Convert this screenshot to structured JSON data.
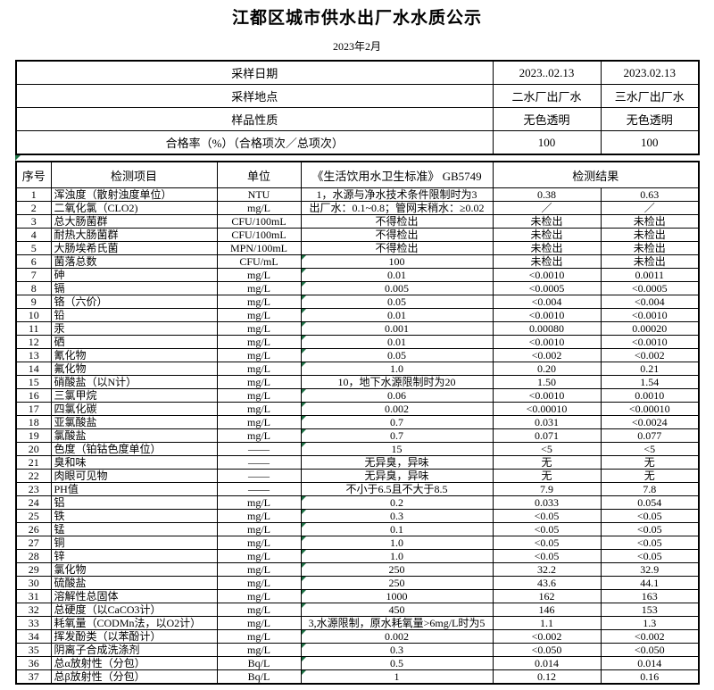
{
  "title": "江都区城市供水出厂水水质公示",
  "subtitle": "2023年2月",
  "info": {
    "rows": [
      {
        "label": "采样日期",
        "v1": "2023..02.13",
        "v2": "2023.02.13"
      },
      {
        "label": "采样地点",
        "v1": "二水厂出厂水",
        "v2": "三水厂出厂水"
      },
      {
        "label": "样品性质",
        "v1": "无色透明",
        "v2": "无色透明"
      },
      {
        "label": "合格率（%）（合格项次／总项次）",
        "v1": "100",
        "v2": "100"
      }
    ]
  },
  "columns": {
    "seq": "序号",
    "item": "检测项目",
    "unit": "单位",
    "standard": "《生活饮用水卫生标准》 GB5749",
    "result": "检测结果"
  },
  "rows": [
    {
      "no": "1",
      "item": "浑浊度（散射浊度单位）",
      "unit": "NTU",
      "std": "1，水源与净水技术条件限制时为3",
      "r1": "0.38",
      "r2": "0.63",
      "flag": false
    },
    {
      "no": "2",
      "item": "二氧化氯（CLO2)",
      "unit": "mg/L",
      "std": "出厂水：0.1~0.8；管网末稍水：≥0.02",
      "r1": "／",
      "r2": "／",
      "flag": false
    },
    {
      "no": "3",
      "item": "总大肠菌群",
      "unit": "CFU/100mL",
      "std": "不得检出",
      "r1": "未检出",
      "r2": "未检出",
      "flag": false
    },
    {
      "no": "4",
      "item": "耐热大肠菌群",
      "unit": "CFU/100mL",
      "std": "不得检出",
      "r1": "未检出",
      "r2": "未检出",
      "flag": false
    },
    {
      "no": "5",
      "item": "大肠埃希氏菌",
      "unit": "MPN/100mL",
      "std": "不得检出",
      "r1": "未检出",
      "r2": "未检出",
      "flag": false
    },
    {
      "no": "6",
      "item": "菌落总数",
      "unit": "CFU/mL",
      "std": "100",
      "r1": "未检出",
      "r2": "未检出",
      "flag": true
    },
    {
      "no": "7",
      "item": "砷",
      "unit": "mg/L",
      "std": "0.01",
      "r1": "<0.0010",
      "r2": "0.0011",
      "flag": true
    },
    {
      "no": "8",
      "item": "镉",
      "unit": "mg/L",
      "std": "0.005",
      "r1": "<0.0005",
      "r2": "<0.0005",
      "flag": true
    },
    {
      "no": "9",
      "item": "铬（六价）",
      "unit": "mg/L",
      "std": "0.05",
      "r1": "<0.004",
      "r2": "<0.004",
      "flag": true
    },
    {
      "no": "10",
      "item": "铅",
      "unit": "mg/L",
      "std": "0.01",
      "r1": "<0.0010",
      "r2": "<0.0010",
      "flag": true
    },
    {
      "no": "11",
      "item": "汞",
      "unit": "mg/L",
      "std": "0.001",
      "r1": "0.00080",
      "r2": "0.00020",
      "flag": true
    },
    {
      "no": "12",
      "item": "硒",
      "unit": "mg/L",
      "std": "0.01",
      "r1": "<0.0010",
      "r2": "<0.0010",
      "flag": true
    },
    {
      "no": "13",
      "item": "氰化物",
      "unit": "mg/L",
      "std": "0.05",
      "r1": "<0.002",
      "r2": "<0.002",
      "flag": true
    },
    {
      "no": "14",
      "item": "氟化物",
      "unit": "mg/L",
      "std": "1.0",
      "r1": "0.20",
      "r2": "0.21",
      "flag": true
    },
    {
      "no": "15",
      "item": "硝酸盐（以N计）",
      "unit": "mg/L",
      "std": "10，地下水源限制时为20",
      "r1": "1.50",
      "r2": "1.54",
      "flag": false
    },
    {
      "no": "16",
      "item": "三氯甲烷",
      "unit": "mg/L",
      "std": "0.06",
      "r1": "<0.0010",
      "r2": "0.0010",
      "flag": true
    },
    {
      "no": "17",
      "item": "四氯化碳",
      "unit": "mg/L",
      "std": "0.002",
      "r1": "<0.00010",
      "r2": "<0.00010",
      "flag": true
    },
    {
      "no": "18",
      "item": "亚氯酸盐",
      "unit": "mg/L",
      "std": "0.7",
      "r1": "0.031",
      "r2": "<0.0024",
      "flag": true
    },
    {
      "no": "19",
      "item": "氯酸盐",
      "unit": "mg/L",
      "std": "0.7",
      "r1": "0.071",
      "r2": "0.077",
      "flag": true
    },
    {
      "no": "20",
      "item": "色度（铂钴色度单位）",
      "unit": "——",
      "std": "15",
      "r1": "<5",
      "r2": "<5",
      "flag": true
    },
    {
      "no": "21",
      "item": "臭和味",
      "unit": "——",
      "std": "无异臭，异味",
      "r1": "无",
      "r2": "无",
      "flag": false
    },
    {
      "no": "22",
      "item": "肉眼可见物",
      "unit": "——",
      "std": "无异臭，异味",
      "r1": "无",
      "r2": "无",
      "flag": false
    },
    {
      "no": "23",
      "item": "PH值",
      "unit": "——",
      "std": "不小于6.5且不大于8.5",
      "r1": "7.9",
      "r2": "7.8",
      "flag": false
    },
    {
      "no": "24",
      "item": "铝",
      "unit": "mg/L",
      "std": "0.2",
      "r1": "0.033",
      "r2": "0.054",
      "flag": true
    },
    {
      "no": "25",
      "item": "铁",
      "unit": "mg/L",
      "std": "0.3",
      "r1": "<0.05",
      "r2": "<0.05",
      "flag": true
    },
    {
      "no": "26",
      "item": "锰",
      "unit": "mg/L",
      "std": "0.1",
      "r1": "<0.05",
      "r2": "<0.05",
      "flag": true
    },
    {
      "no": "27",
      "item": "铜",
      "unit": "mg/L",
      "std": "1.0",
      "r1": "<0.05",
      "r2": "<0.05",
      "flag": true
    },
    {
      "no": "28",
      "item": "锌",
      "unit": "mg/L",
      "std": "1.0",
      "r1": "<0.05",
      "r2": "<0.05",
      "flag": true
    },
    {
      "no": "29",
      "item": "氯化物",
      "unit": "mg/L",
      "std": "250",
      "r1": "32.2",
      "r2": "32.9",
      "flag": true
    },
    {
      "no": "30",
      "item": "硫酸盐",
      "unit": "mg/L",
      "std": "250",
      "r1": "43.6",
      "r2": "44.1",
      "flag": true
    },
    {
      "no": "31",
      "item": "溶解性总固体",
      "unit": "mg/L",
      "std": "1000",
      "r1": "162",
      "r2": "163",
      "flag": true
    },
    {
      "no": "32",
      "item": "总硬度（以CaCO3计）",
      "unit": "mg/L",
      "std": "450",
      "r1": "146",
      "r2": "153",
      "flag": true
    },
    {
      "no": "33",
      "item": "耗氧量（CODMn法，以O2计）",
      "unit": "mg/L",
      "std": "3,水源限制，原水耗氧量>6mg/L时为5",
      "r1": "1.1",
      "r2": "1.3",
      "flag": false
    },
    {
      "no": "34",
      "item": "挥发酚类（以苯酚计）",
      "unit": "mg/L",
      "std": "0.002",
      "r1": "<0.002",
      "r2": "<0.002",
      "flag": true
    },
    {
      "no": "35",
      "item": "阴离子合成洗涤剂",
      "unit": "mg/L",
      "std": "0.3",
      "r1": "<0.050",
      "r2": "<0.050",
      "flag": true
    },
    {
      "no": "36",
      "item": "总α放射性（分包）",
      "unit": "Bq/L",
      "std": "0.5",
      "r1": "0.014",
      "r2": "0.014",
      "flag": true
    },
    {
      "no": "37",
      "item": "总β放射性（分包）",
      "unit": "Bq/L",
      "std": "1",
      "r1": "0.12",
      "r2": "0.16",
      "flag": true
    }
  ],
  "colors": {
    "flag_green": "#1e7145",
    "border": "#000000",
    "text": "#000000"
  }
}
